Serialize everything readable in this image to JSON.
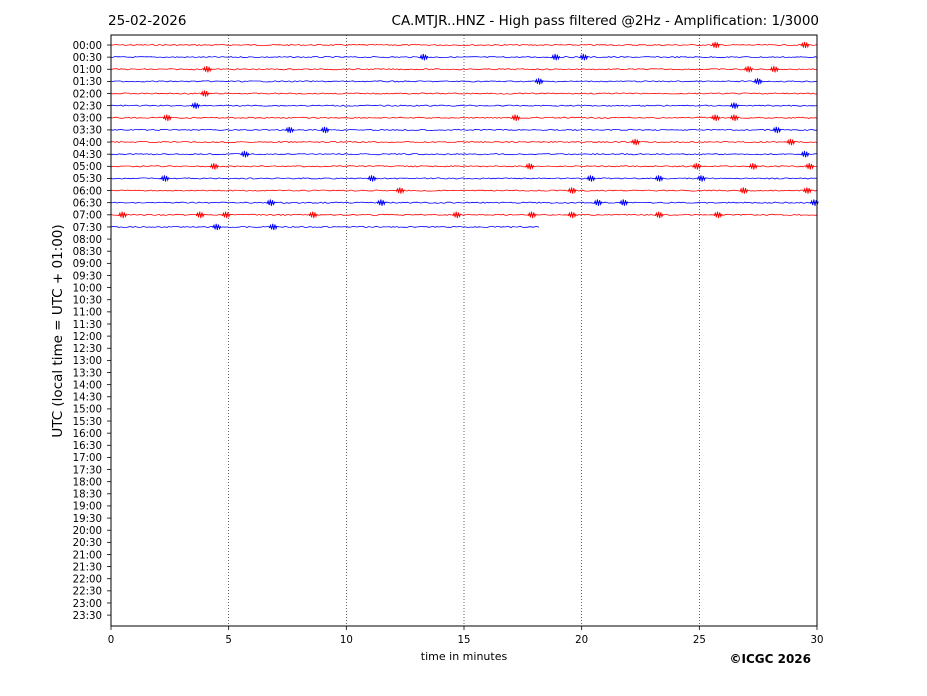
{
  "header": {
    "date": "25-02-2026",
    "title": "CA.MTJR..HNZ - High pass filtered @2Hz - Amplification: 1/3000"
  },
  "footer": {
    "copyright": "©ICGC 2026"
  },
  "colors": {
    "even_row": "#ff0000",
    "odd_row": "#0000ff",
    "grid": "#000000"
  },
  "chart_data": {
    "type": "line",
    "title": "CA.MTJR..HNZ - High pass filtered @2Hz - Amplification: 1/3000",
    "xlabel": "time in minutes",
    "ylabel": "UTC (local time = UTC + 01:00)",
    "xlim": [
      0,
      30
    ],
    "xticks": [
      0,
      5,
      10,
      15,
      20,
      25,
      30
    ],
    "vertical_gridlines": [
      5,
      10,
      15,
      20,
      25
    ],
    "row_labels": [
      "00:00",
      "00:30",
      "01:00",
      "01:30",
      "02:00",
      "02:30",
      "03:00",
      "03:30",
      "04:00",
      "04:30",
      "05:00",
      "05:30",
      "06:00",
      "06:30",
      "07:00",
      "07:30",
      "08:00",
      "08:30",
      "09:00",
      "09:30",
      "10:00",
      "10:30",
      "11:00",
      "11:30",
      "12:00",
      "12:30",
      "13:00",
      "13:30",
      "14:00",
      "14:30",
      "15:00",
      "15:30",
      "16:00",
      "16:30",
      "17:00",
      "17:30",
      "18:00",
      "18:30",
      "19:00",
      "19:30",
      "20:00",
      "20:30",
      "21:00",
      "21:30",
      "22:00",
      "22:30",
      "23:00",
      "23:30"
    ],
    "traces": [
      {
        "row": "00:00",
        "color": "red",
        "end_minute": 30,
        "events": [
          25.7,
          29.5
        ]
      },
      {
        "row": "00:30",
        "color": "blue",
        "end_minute": 30,
        "events": [
          13.3,
          18.9,
          20.1
        ]
      },
      {
        "row": "01:00",
        "color": "red",
        "end_minute": 30,
        "events": [
          4.1,
          27.1,
          28.2
        ]
      },
      {
        "row": "01:30",
        "color": "blue",
        "end_minute": 30,
        "events": [
          18.2,
          27.5
        ]
      },
      {
        "row": "02:00",
        "color": "red",
        "end_minute": 30,
        "events": [
          4.0
        ]
      },
      {
        "row": "02:30",
        "color": "blue",
        "end_minute": 30,
        "events": [
          3.6,
          26.5
        ]
      },
      {
        "row": "03:00",
        "color": "red",
        "end_minute": 30,
        "events": [
          2.4,
          17.2,
          25.7,
          26.5
        ]
      },
      {
        "row": "03:30",
        "color": "blue",
        "end_minute": 30,
        "events": [
          7.6,
          9.1,
          28.3
        ]
      },
      {
        "row": "04:00",
        "color": "red",
        "end_minute": 30,
        "events": [
          22.3,
          28.9
        ]
      },
      {
        "row": "04:30",
        "color": "blue",
        "end_minute": 30,
        "events": [
          5.7,
          29.5
        ]
      },
      {
        "row": "05:00",
        "color": "red",
        "end_minute": 30,
        "events": [
          4.4,
          17.8,
          24.9,
          27.3,
          29.7
        ]
      },
      {
        "row": "05:30",
        "color": "blue",
        "end_minute": 30,
        "events": [
          2.3,
          11.1,
          20.4,
          23.3,
          25.1
        ]
      },
      {
        "row": "06:00",
        "color": "red",
        "end_minute": 30,
        "events": [
          12.3,
          19.6,
          26.9,
          29.6
        ]
      },
      {
        "row": "06:30",
        "color": "blue",
        "end_minute": 30,
        "events": [
          6.8,
          11.5,
          20.7,
          21.8,
          29.9
        ]
      },
      {
        "row": "07:00",
        "color": "red",
        "end_minute": 30,
        "events": [
          0.5,
          3.8,
          4.9,
          8.6,
          14.7,
          17.9,
          19.6,
          23.3,
          25.8
        ]
      },
      {
        "row": "07:30",
        "color": "blue",
        "end_minute": 18.2,
        "events": [
          4.5,
          6.9
        ]
      }
    ]
  }
}
